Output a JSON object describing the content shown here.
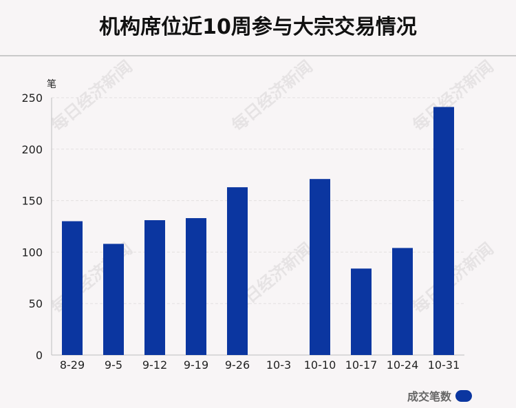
{
  "title": "机构席位近10周参与大宗交易情况",
  "watermark": "每日经济新闻",
  "chart_data": {
    "type": "bar",
    "unit": "笔",
    "categories": [
      "8-29",
      "9-5",
      "9-12",
      "9-19",
      "9-26",
      "10-3",
      "10-10",
      "10-17",
      "10-24",
      "10-31"
    ],
    "series": [
      {
        "name": "成交笔数",
        "values": [
          130,
          108,
          131,
          133,
          163,
          0,
          171,
          84,
          104,
          241
        ],
        "color": "#0b36a0"
      }
    ],
    "ylim": [
      0,
      250
    ],
    "yticks": [
      0,
      50,
      100,
      150,
      200,
      250
    ],
    "grid": true,
    "legend_position": "bottom-right"
  }
}
